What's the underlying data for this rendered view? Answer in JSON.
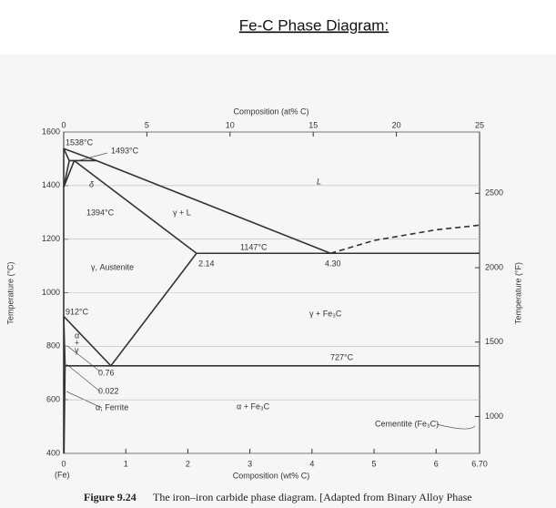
{
  "chart_data": {
    "type": "phase",
    "title": "Fe-C Phase Diagram:",
    "xlabel": "Composition (wt% C)",
    "x2label": "Composition (at% C)",
    "ylabel": "Temperature (°C)",
    "y2label": "Temperature (°F)",
    "xlim": [
      0,
      6.7
    ],
    "xticks": [
      0,
      1,
      2,
      3,
      4,
      5,
      6,
      {
        "value": 6.7,
        "label": "6.70"
      }
    ],
    "x2lim": [
      0,
      25
    ],
    "x2ticks": [
      0,
      5,
      10,
      15,
      20,
      25
    ],
    "ylim": [
      400,
      1600
    ],
    "yticks": [
      400,
      600,
      800,
      1000,
      1200,
      1400,
      1600
    ],
    "y2lim": [
      752,
      2912
    ],
    "y2ticks": [
      1000,
      1500,
      2000,
      2500
    ],
    "grid": true,
    "color": "#333333",
    "series": [
      {
        "x": [
          0,
          0.09
        ],
        "values": [
          1538,
          1493
        ]
      },
      {
        "x": [
          0,
          0.53,
          4.3
        ],
        "values": [
          1538,
          1493,
          1147
        ]
      },
      {
        "x": [
          0.09,
          0.53
        ],
        "values": [
          1493,
          1493
        ]
      },
      {
        "x": [
          0.17,
          2.14
        ],
        "values": [
          1493,
          1147
        ]
      },
      {
        "x": [
          0,
          0.09
        ],
        "values": [
          1394,
          1493
        ]
      },
      {
        "x": [
          0,
          0.17
        ],
        "values": [
          1394,
          1493
        ]
      },
      {
        "x": [
          2.14,
          6.7
        ],
        "values": [
          1147,
          1147
        ]
      },
      {
        "x": [
          4.3,
          5.0,
          6.0,
          6.7
        ],
        "values": [
          1147,
          1195,
          1235,
          1252
        ],
        "dashed": true
      },
      {
        "x": [
          0,
          0.76,
          2.14
        ],
        "values": [
          912,
          727,
          1147
        ]
      },
      {
        "x": [
          0.022,
          6.7
        ],
        "values": [
          727,
          727
        ]
      },
      {
        "x": [
          0,
          0.022,
          0.005
        ],
        "values": [
          912,
          727,
          400
        ]
      },
      {
        "x": [
          0,
          0
        ],
        "values": [
          400,
          1538
        ]
      }
    ],
    "annotations": [
      "1538°C",
      "1493°C",
      "δ",
      "1394°C",
      "γ + L",
      "L",
      "1147°C",
      "2.14",
      "4.30",
      "γ, Austenite",
      "912°C",
      "γ + Fe₃C",
      "727°C",
      "α",
      "+",
      "γ",
      "0.76",
      "0.022",
      "α, Ferrite",
      "α + Fe₃C",
      "Cementite (Fe₃C)",
      "(Fe)"
    ],
    "caption_label": "Figure 9.24",
    "caption": "The iron–iron carbide phase diagram. [Adapted from Binary Alloy Phase"
  }
}
